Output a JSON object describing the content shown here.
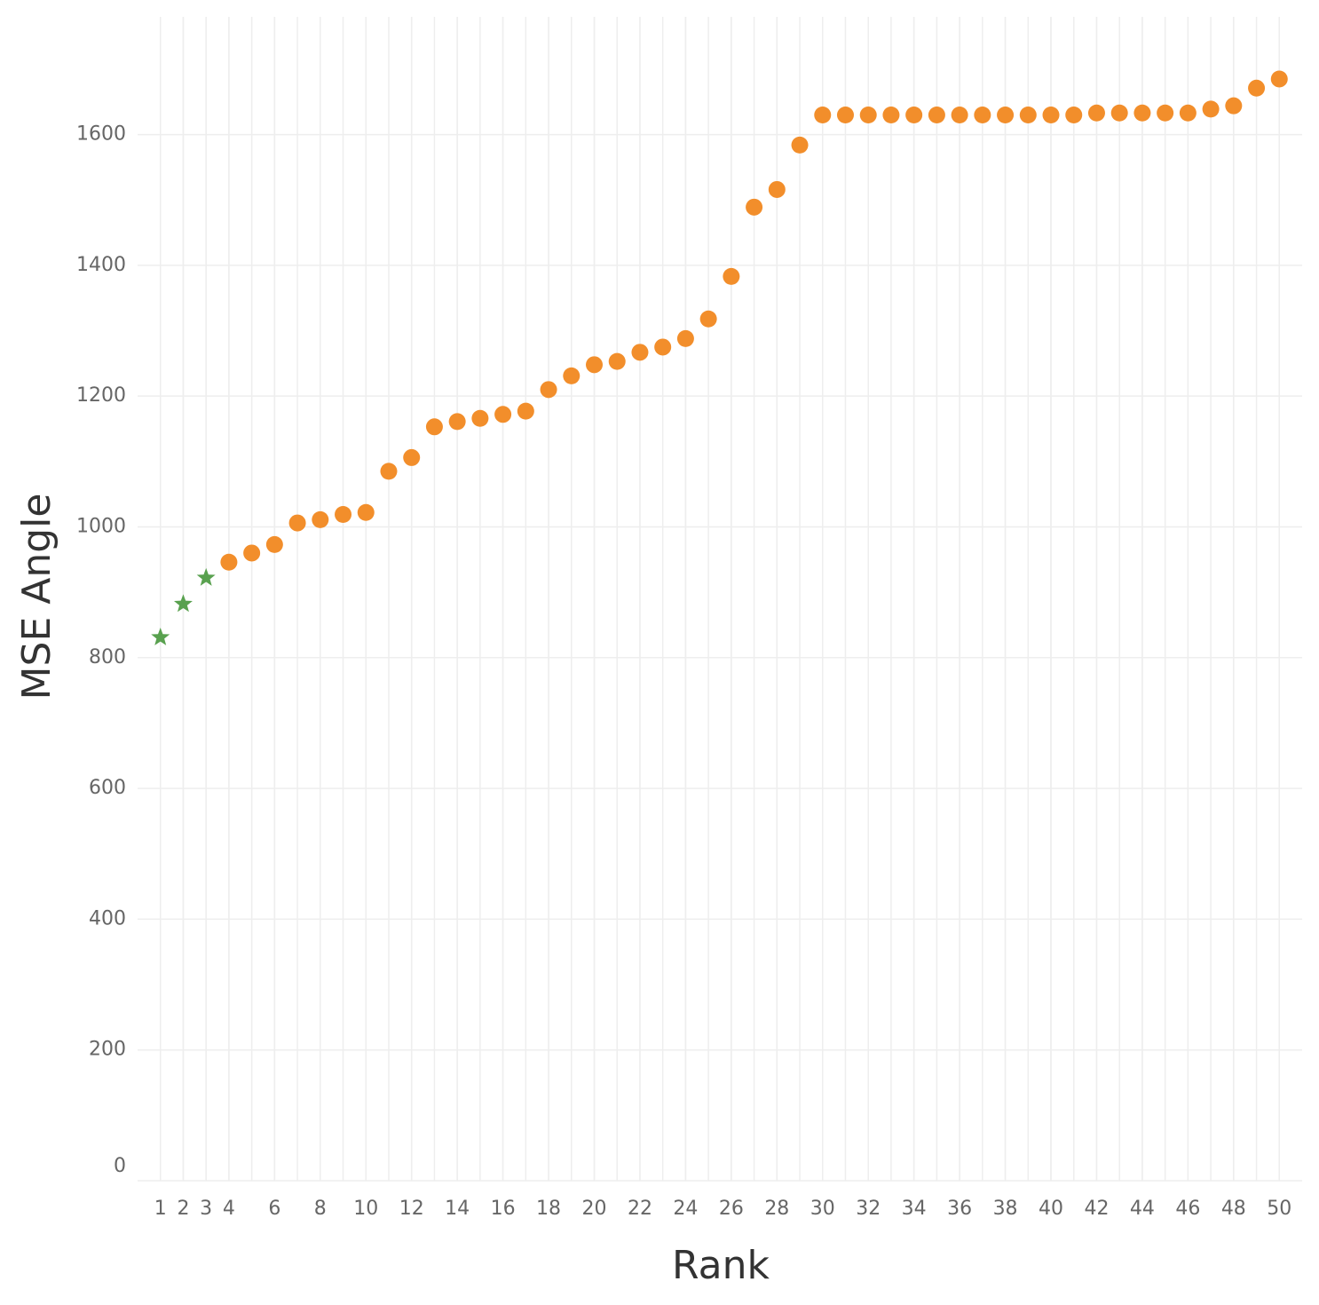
{
  "chart_data": {
    "type": "scatter",
    "xlabel": "Rank",
    "ylabel": "MSE Angle",
    "series": [
      {
        "color": "#59a14f",
        "marker": "star",
        "x": [
          1,
          2,
          3
        ],
        "values": [
          831,
          882,
          922
        ]
      },
      {
        "color": "#f28e2b",
        "marker": "circle",
        "x": [
          4,
          5,
          6,
          7,
          8,
          9,
          10,
          11,
          12,
          13,
          14,
          15,
          16,
          17,
          18,
          19,
          20,
          21,
          22,
          23,
          24,
          25,
          26,
          27,
          28,
          29,
          30,
          31,
          32,
          33,
          34,
          35,
          36,
          37,
          38,
          39,
          40,
          41,
          42,
          43,
          44,
          45,
          46,
          47,
          48,
          49,
          50
        ],
        "values": [
          946,
          960,
          973,
          1006,
          1011,
          1019,
          1022,
          1085,
          1106,
          1153,
          1161,
          1166,
          1172,
          1177,
          1210,
          1231,
          1248,
          1253,
          1267,
          1275,
          1288,
          1318,
          1383,
          1489,
          1516,
          1584,
          1630,
          1630,
          1630,
          1630,
          1630,
          1630,
          1630,
          1630,
          1630,
          1630,
          1630,
          1630,
          1633,
          1633,
          1633,
          1633,
          1633,
          1639,
          1644,
          1671,
          1685
        ]
      }
    ],
    "xlim": [
      0,
      51
    ],
    "xticks": [
      1,
      2,
      3,
      4,
      6,
      8,
      10,
      12,
      14,
      16,
      18,
      20,
      22,
      24,
      26,
      28,
      30,
      32,
      34,
      36,
      38,
      40,
      42,
      44,
      46,
      48,
      50
    ],
    "ylim": [
      0,
      1780
    ],
    "yticks": [
      0,
      200,
      400,
      600,
      800,
      1000,
      1200,
      1400,
      1600
    ],
    "grid": true
  }
}
